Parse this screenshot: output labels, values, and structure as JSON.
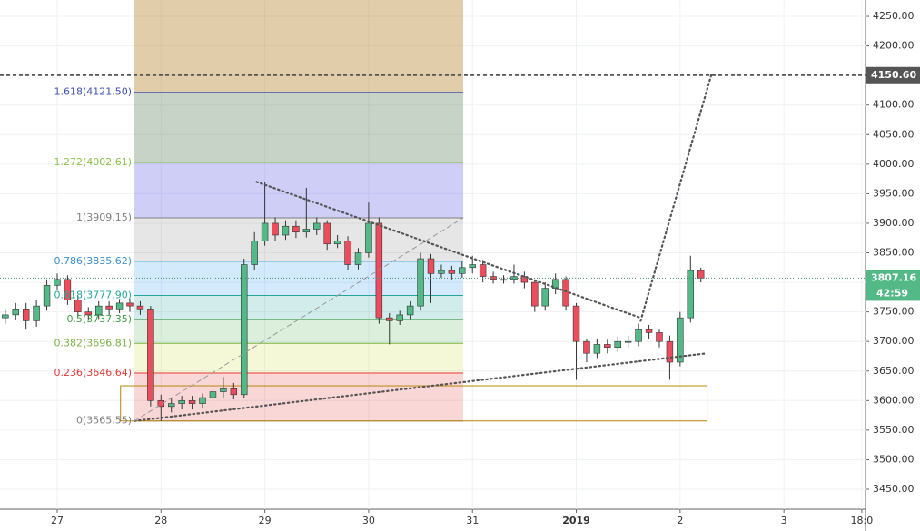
{
  "chart_data": {
    "type": "candlestick",
    "up_color": "#53b987",
    "down_color": "#eb4d5c",
    "wick_color": "#333333",
    "xlim": [
      -0.551,
      7.786
    ],
    "xticks": [
      {
        "value": 0,
        "label": "27"
      },
      {
        "value": 1,
        "label": "28"
      },
      {
        "value": 2,
        "label": "29"
      },
      {
        "value": 3,
        "label": "30"
      },
      {
        "value": 4,
        "label": "31"
      },
      {
        "value": 5,
        "label": "2019"
      },
      {
        "value": 6,
        "label": "2"
      },
      {
        "value": 7,
        "label": "3"
      },
      {
        "value": 7.75,
        "label": "18:0"
      }
    ],
    "ylim": [
      3416.2,
      4277.7
    ],
    "yticks": [
      {
        "value": 3450,
        "label": "3450.00"
      },
      {
        "value": 3500,
        "label": "3500.00"
      },
      {
        "value": 3550,
        "label": "3550.00"
      },
      {
        "value": 3600,
        "label": "3600.00"
      },
      {
        "value": 3650,
        "label": "3650.00"
      },
      {
        "value": 3700,
        "label": "3700.00"
      },
      {
        "value": 3750,
        "label": "3750.00"
      },
      {
        "value": 3800,
        "label": "3800.00"
      },
      {
        "value": 3850,
        "label": "3850.00"
      },
      {
        "value": 3900,
        "label": "3900.00"
      },
      {
        "value": 3950,
        "label": "3950.00"
      },
      {
        "value": 4000,
        "label": "4000.00"
      },
      {
        "value": 4050,
        "label": "4050.00"
      },
      {
        "value": 4100,
        "label": "4100.00"
      },
      {
        "value": 4150,
        "label": "4150.00"
      },
      {
        "value": 4200,
        "label": "4200.00"
      },
      {
        "value": 4250,
        "label": "4250.00"
      }
    ],
    "grid": true,
    "x": [
      -0.5,
      -0.4,
      -0.3,
      -0.2,
      -0.1,
      0,
      0.1,
      0.2,
      0.3,
      0.4,
      0.5,
      0.6,
      0.7,
      0.8,
      0.9,
      1,
      1.1,
      1.2,
      1.3,
      1.4,
      1.5,
      1.6,
      1.7,
      1.8,
      1.9,
      2,
      2.1,
      2.2,
      2.3,
      2.4,
      2.5,
      2.6,
      2.7,
      2.8,
      2.9,
      3,
      3.1,
      3.2,
      3.3,
      3.4,
      3.5,
      3.6,
      3.7,
      3.8,
      3.9,
      4,
      4.1,
      4.2,
      4.3,
      4.4,
      4.5,
      4.6,
      4.7,
      4.8,
      4.9,
      5,
      5.1,
      5.2,
      5.3,
      5.4,
      5.5,
      5.6,
      5.7,
      5.8,
      5.9,
      6,
      6.1,
      6.2
    ],
    "open": [
      3740,
      3745,
      3755,
      3735,
      3760,
      3795,
      3805,
      3770,
      3750,
      3745,
      3760,
      3755,
      3765,
      3760,
      3755,
      3600,
      3590,
      3595,
      3600,
      3595,
      3605,
      3615,
      3620,
      3610,
      3830,
      3870,
      3900,
      3880,
      3895,
      3885,
      3890,
      3900,
      3865,
      3870,
      3830,
      3850,
      3900,
      3740,
      3735,
      3745,
      3760,
      3840,
      3815,
      3820,
      3815,
      3825,
      3830,
      3810,
      3805,
      3805,
      3810,
      3800,
      3760,
      3790,
      3805,
      3760,
      3700,
      3680,
      3695,
      3690,
      3700,
      3700,
      3720,
      3715,
      3700,
      3665,
      3740,
      3820
    ],
    "high": [
      3755,
      3765,
      3765,
      3770,
      3805,
      3815,
      3812,
      3778,
      3758,
      3768,
      3768,
      3772,
      3772,
      3768,
      3760,
      3610,
      3605,
      3608,
      3608,
      3612,
      3622,
      3640,
      3630,
      3840,
      3885,
      3970,
      3910,
      3905,
      3905,
      3960,
      3910,
      3905,
      3880,
      3878,
      3858,
      3935,
      3910,
      3748,
      3752,
      3768,
      3850,
      3848,
      3830,
      3828,
      3835,
      3845,
      3838,
      3818,
      3812,
      3830,
      3818,
      3805,
      3800,
      3815,
      3810,
      3765,
      3705,
      3705,
      3703,
      3708,
      3710,
      3730,
      3728,
      3720,
      3710,
      3750,
      3845,
      3825
    ],
    "low": [
      3730,
      3737,
      3720,
      3725,
      3752,
      3788,
      3762,
      3742,
      3735,
      3738,
      3745,
      3748,
      3750,
      3745,
      3590,
      3565.55,
      3580,
      3585,
      3585,
      3588,
      3598,
      3605,
      3602,
      3605,
      3820,
      3862,
      3870,
      3872,
      3875,
      3876,
      3880,
      3855,
      3858,
      3820,
      3822,
      3842,
      3730,
      3695,
      3728,
      3738,
      3752,
      3765,
      3808,
      3805,
      3808,
      3815,
      3800,
      3798,
      3798,
      3798,
      3790,
      3750,
      3752,
      3780,
      3752,
      3635,
      3665,
      3672,
      3680,
      3682,
      3690,
      3692,
      3705,
      3690,
      3635,
      3658,
      3732,
      3800
    ],
    "close": [
      3745,
      3755,
      3735,
      3760,
      3795,
      3805,
      3770,
      3750,
      3745,
      3760,
      3755,
      3765,
      3760,
      3755,
      3600,
      3590,
      3595,
      3600,
      3595,
      3605,
      3615,
      3620,
      3610,
      3830,
      3870,
      3900,
      3880,
      3895,
      3885,
      3890,
      3900,
      3865,
      3870,
      3830,
      3850,
      3900,
      3740,
      3735,
      3745,
      3760,
      3840,
      3815,
      3820,
      3815,
      3825,
      3830,
      3810,
      3805,
      3805,
      3810,
      3800,
      3760,
      3790,
      3805,
      3760,
      3700,
      3680,
      3695,
      3690,
      3700,
      3700,
      3720,
      3715,
      3700,
      3665,
      3740,
      3820,
      3807.16
    ],
    "fib": {
      "x": [
        0.744,
        3.911
      ],
      "top_fill": "rgba(180,130,40,0.4)",
      "levels": [
        {
          "label": "0(3565.55)",
          "value": 3565.55,
          "color": "#808080",
          "fill": "rgba(229,57,53,0.2)"
        },
        {
          "label": "0.236(3646.64)",
          "value": 3646.64,
          "color": "#e53935",
          "fill": "rgba(205,220,57,0.2)"
        },
        {
          "label": "0.382(3696.81)",
          "value": 3696.81,
          "color": "#7cb342",
          "fill": "rgba(76,175,80,0.2)"
        },
        {
          "label": "0.5(3737.35)",
          "value": 3737.35,
          "color": "#43a047",
          "fill": "rgba(0,150,136,0.18)"
        },
        {
          "label": "0.618(3777.90)",
          "value": 3777.9,
          "color": "#26a69a",
          "fill": "rgba(33,150,243,0.2)"
        },
        {
          "label": "0.786(3835.62)",
          "value": 3835.62,
          "color": "#3d8fc8",
          "fill": "rgba(128,128,128,0.2)"
        },
        {
          "label": "1(3909.15)",
          "value": 3909.15,
          "color": "#808080",
          "fill": "rgba(92,92,230,0.3)"
        },
        {
          "label": "1.272(4002.61)",
          "value": 4002.61,
          "color": "#8bc34a",
          "fill": "rgba(70,110,70,0.3)"
        },
        {
          "label": "1.618(4121.50)",
          "value": 4121.5,
          "color": "#3f51b5"
        }
      ]
    },
    "hline": {
      "value": 4150.6,
      "label": "4150.60"
    },
    "last_price": {
      "value": 3807.16,
      "label": "3807.16",
      "countdown": "42:59",
      "color": "#53b987"
    },
    "trendlines": [
      {
        "x": [
          1.92,
          5.62
        ],
        "y": [
          3970,
          3740
        ],
        "style": "dotted"
      },
      {
        "x": [
          0.744,
          6.26
        ],
        "y": [
          3565.55,
          3680
        ],
        "style": "dotted"
      },
      {
        "x": [
          5.62,
          6.3
        ],
        "y": [
          3735,
          4150.6
        ],
        "style": "dotted"
      },
      {
        "x": [
          0.744,
          3.911
        ],
        "y": [
          3565.55,
          3909.15
        ],
        "style": "dashed"
      }
    ],
    "rect": {
      "x": [
        0.61,
        6.26
      ],
      "y": [
        3565.55,
        3625
      ],
      "color": "#b8860b"
    }
  }
}
